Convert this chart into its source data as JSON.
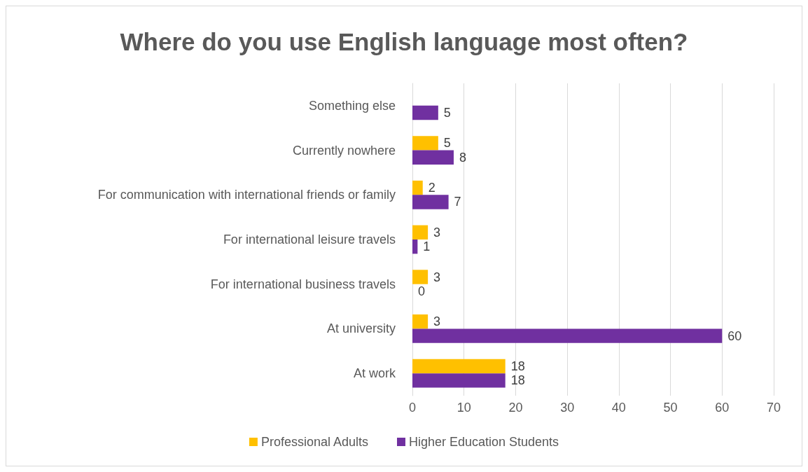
{
  "chart_data": {
    "type": "bar",
    "orientation": "horizontal",
    "title": "Where do you use English language most often?",
    "categories": [
      "Something else",
      "Currently nowhere",
      "For communication with international friends or family",
      "For international leisure travels",
      "For international business travels",
      "At university",
      "At work"
    ],
    "series": [
      {
        "name": "Professional Adults",
        "color": "#ffc000",
        "values": [
          null,
          5,
          2,
          3,
          3,
          3,
          18
        ]
      },
      {
        "name": "Higher Education Students",
        "color": "#7030a0",
        "values": [
          5,
          8,
          7,
          1,
          0,
          60,
          18
        ]
      }
    ],
    "xlim": [
      0,
      70
    ],
    "xticks": [
      0,
      10,
      20,
      30,
      40,
      50,
      60,
      70
    ],
    "grid": "x",
    "legend": "bottom",
    "data_labels": true
  }
}
